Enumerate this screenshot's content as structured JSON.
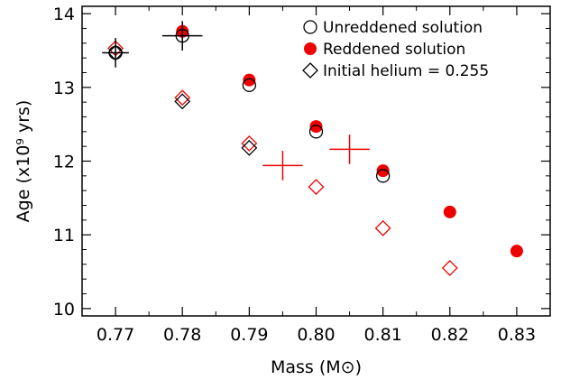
{
  "chart_data": {
    "type": "scatter",
    "xlabel": "Mass (M⊙)",
    "ylabel": "Age (x10⁹ yrs)",
    "xlim": [
      0.765,
      0.835
    ],
    "ylim": [
      9.9,
      14.1
    ],
    "x_ticks": [
      "0.77",
      "0.78",
      "0.79",
      "0.80",
      "0.81",
      "0.82",
      "0.83"
    ],
    "y_ticks": [
      "10",
      "11",
      "12",
      "13",
      "14"
    ],
    "legend_placement": "top-right",
    "series": [
      {
        "name": "Unreddened solution",
        "marker": "open-circle",
        "color": "#000000",
        "points": [
          [
            0.77,
            13.47
          ],
          [
            0.78,
            13.7
          ],
          [
            0.79,
            13.03
          ],
          [
            0.8,
            12.4
          ],
          [
            0.81,
            11.8
          ]
        ]
      },
      {
        "name": "Reddened solution",
        "marker": "filled-circle",
        "color": "#ee0000",
        "points": [
          [
            0.78,
            13.76
          ],
          [
            0.79,
            13.1
          ],
          [
            0.8,
            12.47
          ],
          [
            0.81,
            11.87
          ],
          [
            0.82,
            11.31
          ],
          [
            0.83,
            10.78
          ]
        ]
      },
      {
        "name": "Initial helium = 0.255",
        "marker": "open-diamond",
        "color": "#000000",
        "points": [
          [
            0.77,
            13.47
          ],
          [
            0.78,
            12.81
          ],
          [
            0.79,
            12.18
          ]
        ]
      },
      {
        "name": "",
        "marker": "open-diamond",
        "color": "#ee0000",
        "points": [
          [
            0.77,
            13.53
          ],
          [
            0.78,
            12.86
          ],
          [
            0.79,
            12.24
          ],
          [
            0.8,
            11.65
          ],
          [
            0.81,
            11.09
          ],
          [
            0.82,
            10.55
          ]
        ]
      }
    ],
    "crosses": [
      {
        "x": 0.77,
        "y": 13.47,
        "color": "#000000",
        "xerr": 0.002,
        "yerr": 0.2
      },
      {
        "x": 0.78,
        "y": 13.7,
        "color": "#000000",
        "xerr": 0.003,
        "yerr": 0.2
      },
      {
        "x": 0.795,
        "y": 11.94,
        "color": "#ee0000",
        "xerr": 0.003,
        "yerr": 0.2
      },
      {
        "x": 0.805,
        "y": 12.16,
        "color": "#ee0000",
        "xerr": 0.003,
        "yerr": 0.2
      }
    ]
  }
}
